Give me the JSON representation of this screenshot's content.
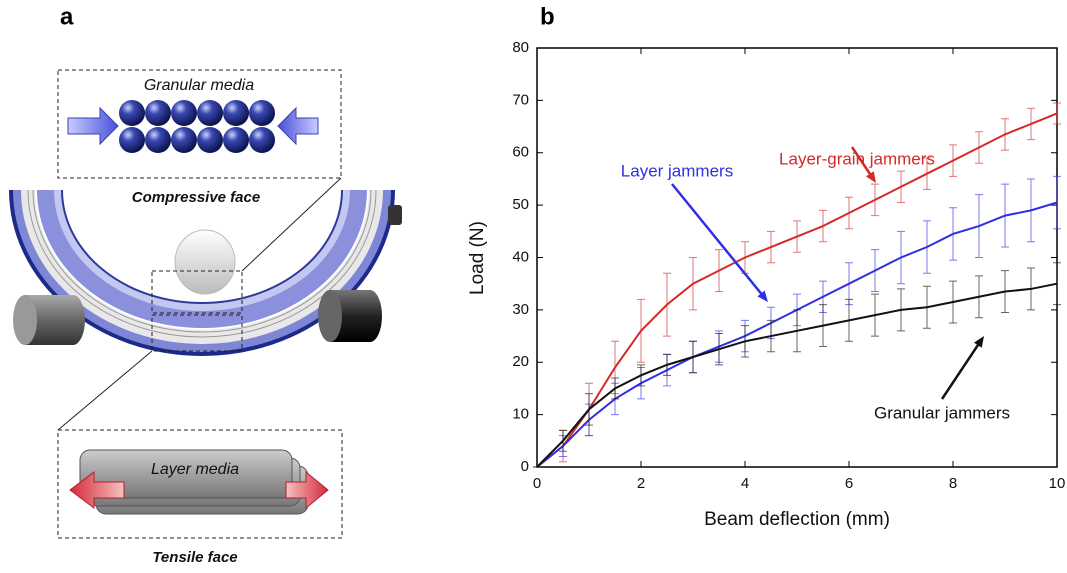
{
  "panel_a": {
    "label": "a",
    "granular_label": "Granular media",
    "compressive_label": "Compressive face",
    "layer_label": "Layer media",
    "tensile_label": "Tensile face"
  },
  "chart_data": {
    "type": "line",
    "title": "b",
    "x_label": "Beam deflection (mm)",
    "y_label": "Load (N)",
    "x": [
      0,
      0.5,
      1,
      1.5,
      2,
      2.5,
      3,
      3.5,
      4,
      4.5,
      5,
      5.5,
      6,
      6.5,
      7,
      7.5,
      8,
      8.5,
      9,
      9.5,
      10
    ],
    "series": [
      {
        "name": "Layer-grain jammers",
        "color": "#d42a2a",
        "values": [
          0,
          4,
          11,
          19,
          26,
          31,
          35,
          37.5,
          40,
          42,
          44,
          46,
          48.5,
          51,
          53.5,
          56,
          58.5,
          61,
          63.5,
          65.5,
          67.5
        ],
        "errors": [
          0,
          3,
          5,
          5,
          6,
          6,
          5,
          4,
          3,
          3,
          3,
          3,
          3,
          3,
          3,
          3,
          3,
          3,
          3,
          3,
          2
        ]
      },
      {
        "name": "Layer jammers",
        "color": "#2f2fe6",
        "values": [
          0,
          4,
          9,
          13,
          16,
          18.5,
          21,
          23,
          25,
          27.5,
          30,
          32.5,
          35,
          37.5,
          40,
          42,
          44.5,
          46,
          48,
          49,
          50.5
        ],
        "errors": [
          0,
          2,
          3,
          3,
          3,
          3,
          3,
          3,
          3,
          3,
          3,
          3,
          4,
          4,
          5,
          5,
          5,
          6,
          6,
          6,
          5
        ]
      },
      {
        "name": "Granular jammers",
        "color": "#111111",
        "values": [
          0,
          5,
          11,
          15,
          17.5,
          19.5,
          21,
          22.5,
          24,
          25,
          26,
          27,
          28,
          29,
          30,
          30.5,
          31.5,
          32.5,
          33.5,
          34,
          35
        ],
        "errors": [
          0,
          2,
          3,
          2,
          2,
          2,
          3,
          3,
          3,
          3,
          4,
          4,
          4,
          4,
          4,
          4,
          4,
          4,
          4,
          4,
          4
        ]
      }
    ],
    "xlim": [
      0,
      10
    ],
    "xticks": [
      0,
      2,
      4,
      6,
      8,
      10
    ],
    "ylim": [
      0,
      80
    ],
    "yticks": [
      0,
      10,
      20,
      30,
      40,
      50,
      60,
      70,
      80
    ],
    "grid": false
  }
}
